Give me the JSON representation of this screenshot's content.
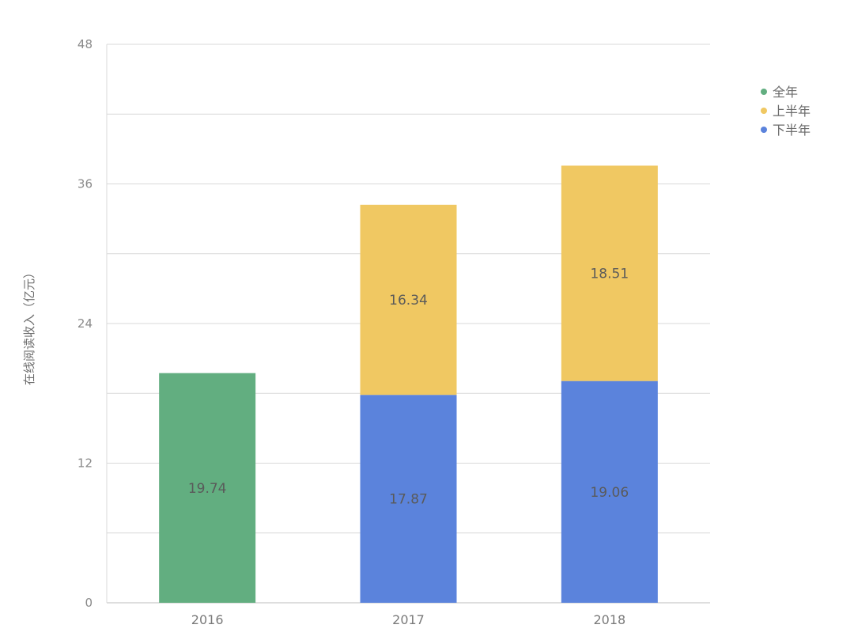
{
  "chart_data": {
    "type": "bar",
    "stacked": true,
    "title": "",
    "xlabel": "",
    "ylabel": "在线阅读收入（亿元）",
    "ylim": [
      0,
      48
    ],
    "yticks": [
      0,
      12,
      24,
      36,
      48
    ],
    "grid": true,
    "legend_position": "top-right",
    "categories": [
      "2016",
      "2017",
      "2018"
    ],
    "series": [
      {
        "name": "全年",
        "color": "#62ae80",
        "values": [
          19.74,
          null,
          null
        ]
      },
      {
        "name": "下半年",
        "color": "#5b83dc",
        "values": [
          null,
          17.87,
          19.06
        ]
      },
      {
        "name": "上半年",
        "color": "#f0c862",
        "values": [
          null,
          16.34,
          18.51
        ]
      }
    ],
    "legend_order": [
      "全年",
      "上半年",
      "下半年"
    ]
  }
}
